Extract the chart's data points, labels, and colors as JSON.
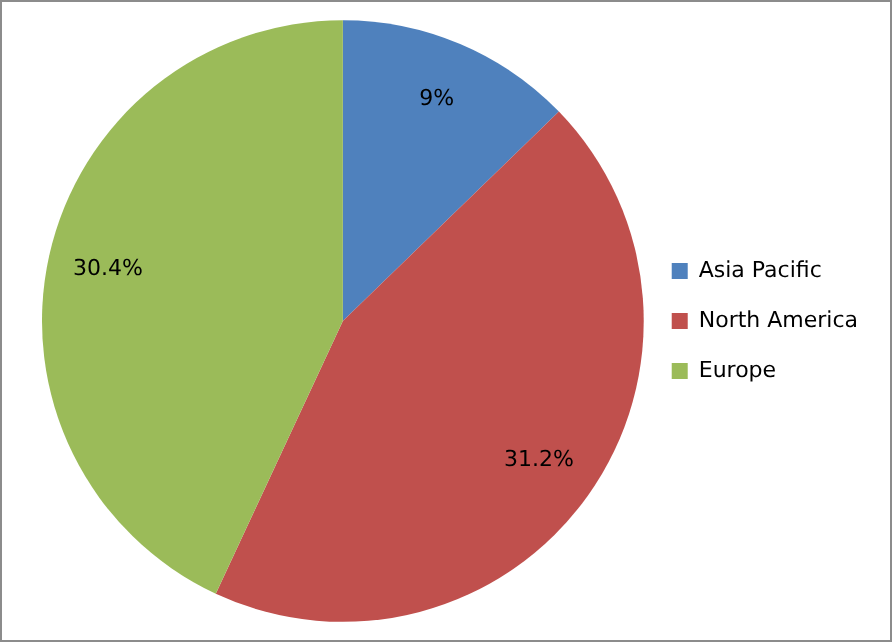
{
  "chart_data": {
    "type": "pie",
    "categories": [
      "Asia Pacific",
      "North America",
      "Europe"
    ],
    "values": [
      9,
      31.2,
      30.4
    ],
    "colors": [
      "#4f81bd",
      "#c0504d",
      "#9bbb59"
    ],
    "value_labels": [
      "9%",
      "31.2%",
      "30.4%"
    ],
    "legend": "right"
  }
}
